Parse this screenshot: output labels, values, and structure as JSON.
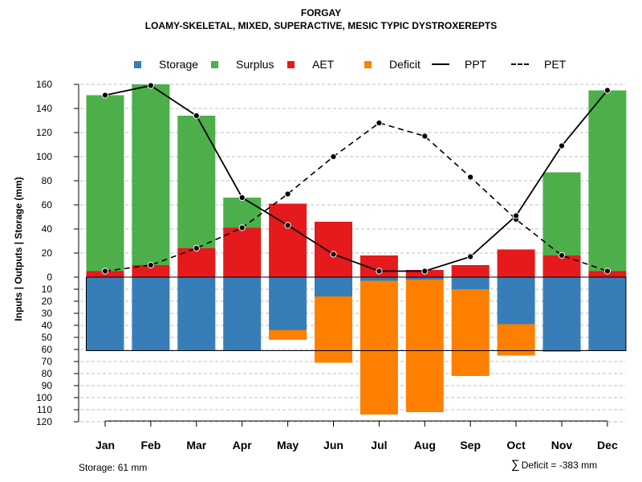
{
  "chart_data": {
    "type": "bar",
    "title": "FORGAY",
    "subtitle": "LOAMY-SKELETAL, MIXED, SUPERACTIVE, MESIC TYPIC DYSTROXEREPTS",
    "ylabel": "Inputs | Outputs | Storage    (mm)",
    "categories": [
      "Jan",
      "Feb",
      "Mar",
      "Apr",
      "May",
      "Jun",
      "Jul",
      "Aug",
      "Sep",
      "Oct",
      "Nov",
      "Dec"
    ],
    "y_upper": {
      "range": [
        0,
        160
      ],
      "ticks": [
        "0",
        "20",
        "40",
        "60",
        "80",
        "100",
        "120",
        "140",
        "160"
      ]
    },
    "y_lower": {
      "range": [
        0,
        120
      ],
      "ticks": [
        "0",
        "10",
        "20",
        "30",
        "40",
        "50",
        "60",
        "70",
        "80",
        "90",
        "100",
        "110",
        "120"
      ]
    },
    "legend": [
      {
        "key": "storage",
        "label": "Storage",
        "kind": "box",
        "color": "#377EB8"
      },
      {
        "key": "surplus",
        "label": "Surplus",
        "kind": "box",
        "color": "#4DAF4A"
      },
      {
        "key": "aet",
        "label": "AET",
        "kind": "box",
        "color": "#E41A1C"
      },
      {
        "key": "deficit",
        "label": "Deficit",
        "kind": "box",
        "color": "#FF7F00"
      },
      {
        "key": "ppt",
        "label": "PPT",
        "kind": "line",
        "style": "solid",
        "color": "#000000"
      },
      {
        "key": "pet",
        "label": "PET",
        "kind": "line",
        "style": "dashed",
        "color": "#000000"
      }
    ],
    "series": {
      "aet": [
        5,
        10,
        24,
        41,
        61,
        46,
        18,
        6,
        10,
        23,
        18,
        5
      ],
      "surplus": [
        146,
        150,
        110,
        25,
        0,
        0,
        0,
        0,
        0,
        0,
        69,
        150
      ],
      "ppt": [
        151,
        159,
        134,
        66,
        43,
        19,
        5,
        5,
        17,
        51,
        109,
        155
      ],
      "pet": [
        5,
        10,
        24,
        41,
        69,
        100,
        128,
        117,
        83,
        48,
        18,
        5
      ],
      "storage": [
        61,
        61,
        61,
        61,
        44,
        16,
        3,
        2,
        10,
        39,
        61,
        61
      ],
      "deficit": [
        0,
        0,
        0,
        0,
        8,
        55,
        111,
        110,
        72,
        26,
        1,
        0
      ]
    },
    "storage_capacity": 61,
    "colors": {
      "storage": "#377EB8",
      "surplus": "#4DAF4A",
      "aet": "#E41A1C",
      "deficit": "#FF7F00",
      "grid": "#BEBEBE"
    }
  },
  "footer": {
    "storage_note": "Storage: 61 mm",
    "deficit_symbol": "∑",
    "deficit_note": "Deficit = -383 mm"
  }
}
